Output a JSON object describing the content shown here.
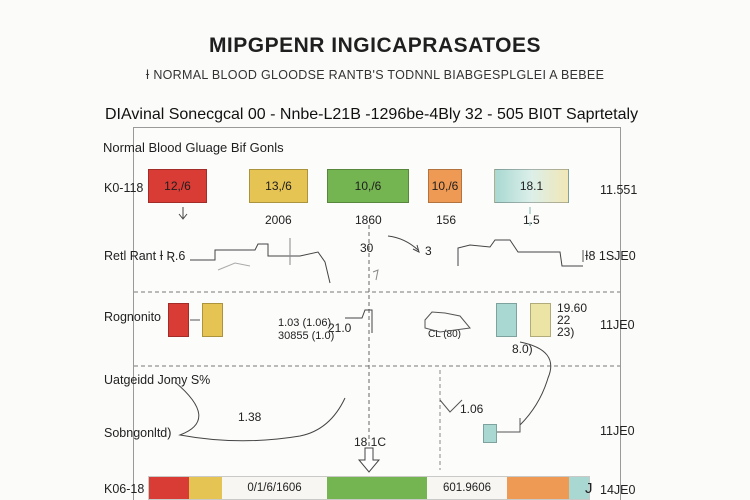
{
  "title": "MIPGPENR INGICAPRASATOES",
  "subtitle": "Ɨ NORMAL BLOOD GLOODSE RANTB'S TODNNL BIABGESPLGLEI A BEBEE",
  "header_line": "DIAvinal Sonecgcal 00 -  Nnbe-L21B -1296be-4Bly   32  -  505  BI0T   Saprtetaly",
  "panel_label": "Normal Blood Gluage Bif Gonls",
  "colors": {
    "red": "#d93b35",
    "yellow": "#e6c453",
    "green": "#74b552",
    "orange": "#ee9a55",
    "teal": "#a9d8d2"
  },
  "row1": {
    "left_label": "K0-118",
    "right_label": "11.551",
    "boxes": [
      "12,/6",
      "13,/6",
      "10,/6",
      "10,/6",
      "18.1"
    ],
    "below_values": [
      "2006",
      "1860",
      "156",
      "1.5"
    ]
  },
  "row2": {
    "left_label": "Retl Rant  Ɨ  Ʀ.6",
    "mid_value": "30",
    "mid_value2": "3",
    "right_label": "Ɨ8  1SJE0"
  },
  "row3": {
    "left_label": "Rognonito",
    "mid_values": [
      "1.03 (1.06)",
      "30855 (1.0)"
    ],
    "mid_value3": "21.0",
    "right_small": [
      "19.60",
      "22",
      "23)"
    ],
    "below_right": "8.0)",
    "right_label": "11JE0",
    "trend_label": "CL (80)"
  },
  "row4": {
    "left_label": "Uatgeidd Jomy S%"
  },
  "row5": {
    "left_label": "Sobngonltd)",
    "value_a": "1.38",
    "value_b": "1.06",
    "right_label": "11JE0",
    "center_value": "18.1C"
  },
  "row6": {
    "left_label": "K06-18",
    "segments": [
      "",
      "",
      "0/1/6/1606",
      "",
      "601.9606",
      "",
      ""
    ],
    "right_label": "14JE0",
    "right_mark": "J"
  }
}
